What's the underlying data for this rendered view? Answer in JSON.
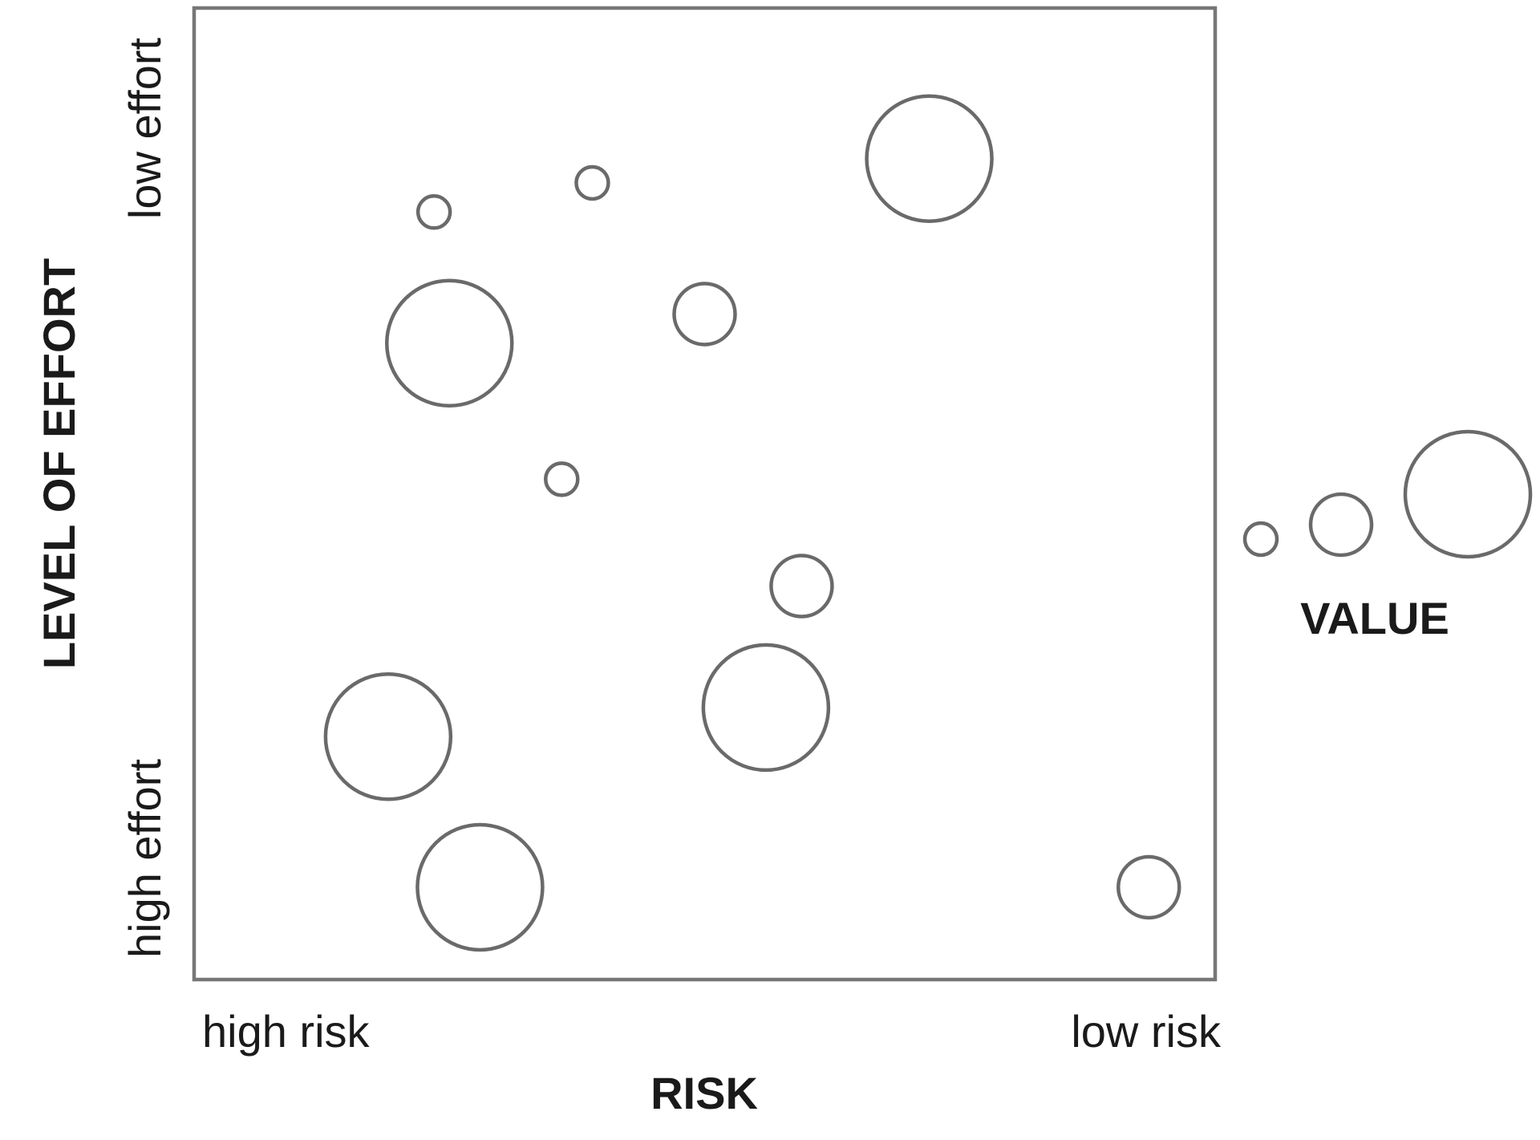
{
  "chart_data": {
    "type": "scatter",
    "xlabel": "RISK",
    "ylabel": "LEVEL OF EFFORT",
    "x_tick_labels": {
      "left": "high risk",
      "right": "low risk"
    },
    "y_tick_labels": {
      "top": "low effort",
      "bottom": "high effort"
    },
    "x_axis_direction": "high risk to low risk (left to right)",
    "y_axis_direction": "high effort to low effort (bottom to top)",
    "xlim": [
      0,
      1
    ],
    "ylim": [
      0,
      1
    ],
    "grid": false,
    "size_legend": {
      "label": "VALUE",
      "placement": "right",
      "sizes": [
        "small",
        "medium",
        "large"
      ]
    },
    "points": [
      {
        "x": 0.235,
        "y": 0.79,
        "size": "small"
      },
      {
        "x": 0.39,
        "y": 0.82,
        "size": "small"
      },
      {
        "x": 0.72,
        "y": 0.845,
        "size": "large"
      },
      {
        "x": 0.25,
        "y": 0.655,
        "size": "large"
      },
      {
        "x": 0.5,
        "y": 0.685,
        "size": "medium"
      },
      {
        "x": 0.36,
        "y": 0.515,
        "size": "small"
      },
      {
        "x": 0.595,
        "y": 0.405,
        "size": "medium"
      },
      {
        "x": 0.56,
        "y": 0.28,
        "size": "large"
      },
      {
        "x": 0.19,
        "y": 0.25,
        "size": "large"
      },
      {
        "x": 0.28,
        "y": 0.095,
        "size": "large"
      },
      {
        "x": 0.935,
        "y": 0.095,
        "size": "medium"
      }
    ]
  }
}
